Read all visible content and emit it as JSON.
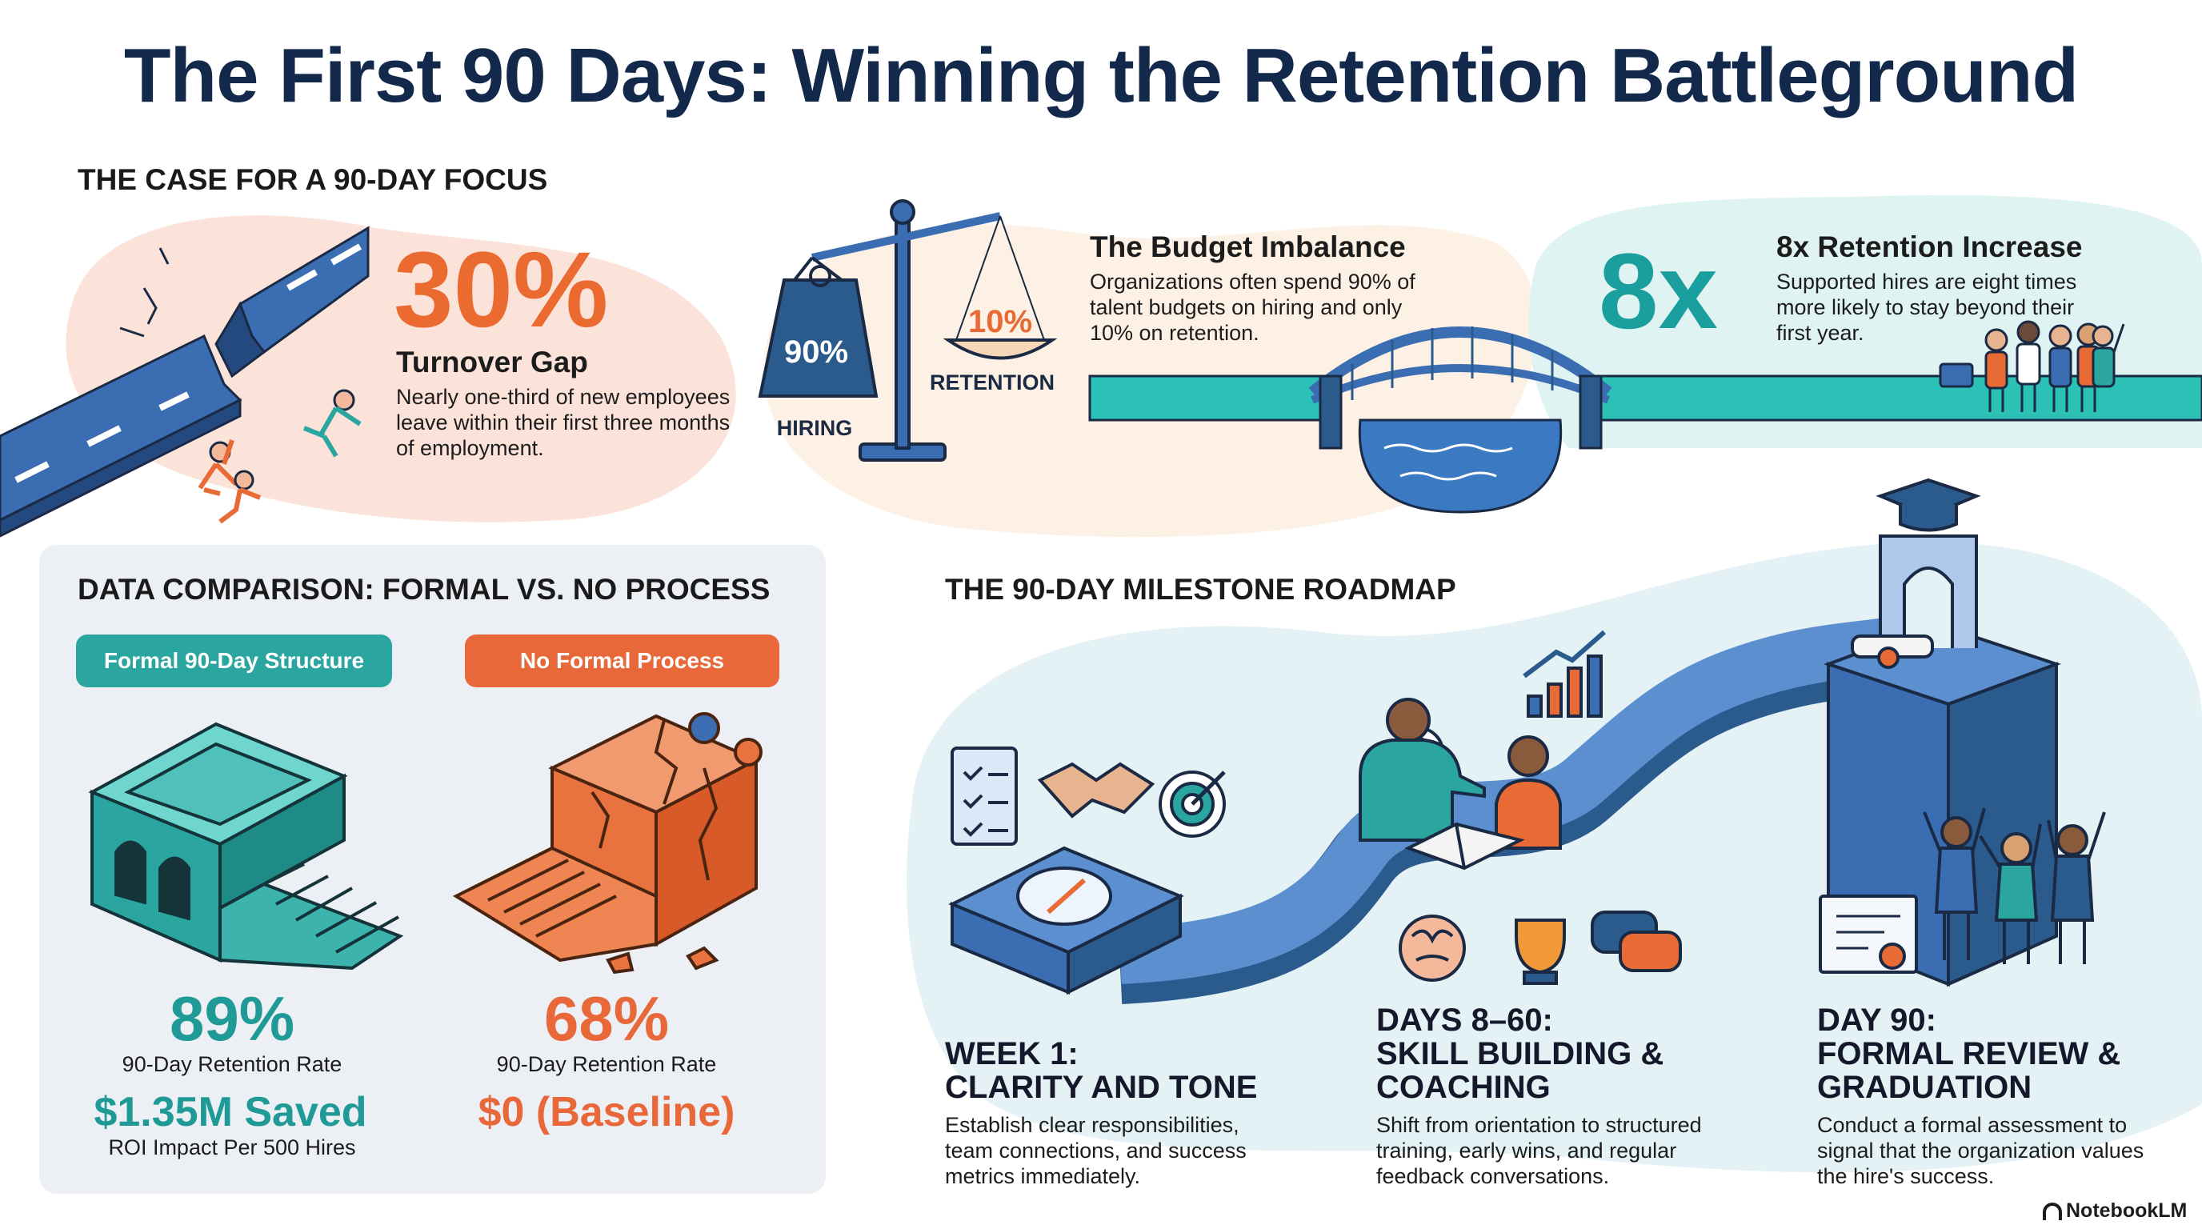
{
  "header": {
    "title": "The First 90 Days: Winning the Retention Battleground"
  },
  "case_section": {
    "heading": "THE CASE FOR A 90-DAY FOCUS",
    "turnover": {
      "stat": "30%",
      "title": "Turnover Gap",
      "text": "Nearly one-third of new employees leave within their first three months of employment."
    },
    "scale": {
      "hiring_value": "90%",
      "hiring_label": "HIRING",
      "retention_value": "10%",
      "retention_label": "RETENTION"
    },
    "budget": {
      "title": "The Budget Imbalance",
      "text": "Organizations often spend 90% of talent budgets on hiring and only 10% on retention."
    },
    "retention": {
      "stat": "8x",
      "title": "8x Retention Increase",
      "text": "Supported hires are eight times more likely to stay beyond their first year."
    }
  },
  "comparison": {
    "heading": "DATA COMPARISON: FORMAL VS. NO PROCESS",
    "columns": [
      {
        "label": "Formal 90-Day Structure",
        "rate": "89%",
        "rate_label": "90-Day Retention Rate",
        "savings": "$1.35M Saved",
        "savings_label": "ROI Impact Per 500 Hires"
      },
      {
        "label": "No Formal Process",
        "rate": "68%",
        "rate_label": "90-Day Retention Rate",
        "savings": "$0 (Baseline)"
      }
    ]
  },
  "roadmap": {
    "heading": "THE 90-DAY MILESTONE ROADMAP",
    "milestones": [
      {
        "title": [
          "WEEK 1:",
          "CLARITY AND TONE"
        ],
        "text": "Establish clear responsibilities, team connections, and success metrics immediately."
      },
      {
        "title": [
          "DAYS 8–60:",
          "SKILL BUILDING &",
          "COACHING"
        ],
        "text": "Shift from orientation to structured training, early wins, and regular feedback conversations."
      },
      {
        "title": [
          "DAY 90:",
          "FORMAL REVIEW &",
          "GRADUATION"
        ],
        "text": "Conduct a formal assessment to signal that the organization values the hire's success."
      }
    ]
  },
  "footer": {
    "brand": "NotebookLM"
  }
}
